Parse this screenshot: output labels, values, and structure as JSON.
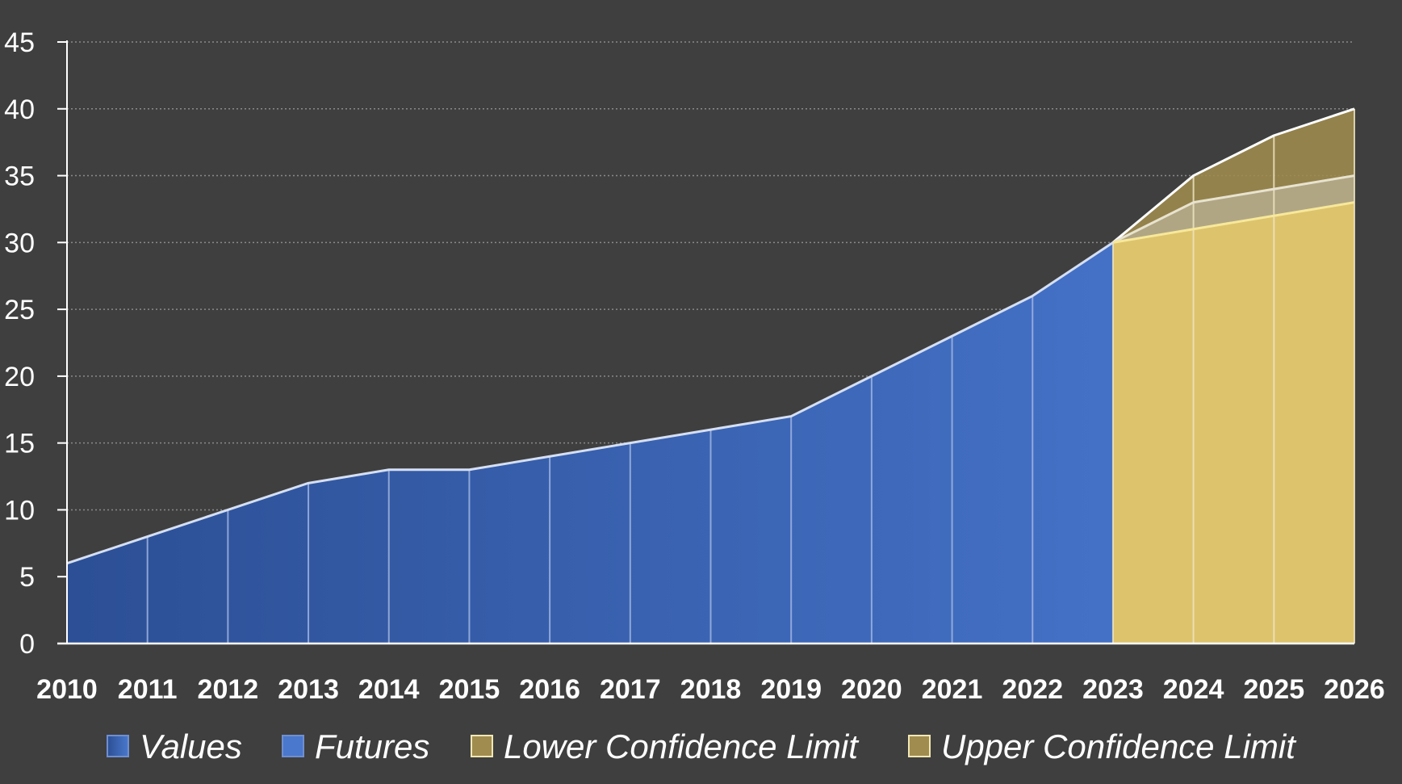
{
  "chart_data": {
    "type": "area",
    "x": [
      "2010",
      "2011",
      "2012",
      "2013",
      "2014",
      "2015",
      "2016",
      "2017",
      "2018",
      "2019",
      "2020",
      "2021",
      "2022",
      "2023",
      "2024",
      "2025",
      "2026"
    ],
    "ylim": [
      0,
      45
    ],
    "yticks": [
      0,
      5,
      10,
      15,
      20,
      25,
      30,
      35,
      40,
      45
    ],
    "grid": "horizontal dotted",
    "legend_position": "bottom",
    "series": [
      {
        "name": "Values",
        "color": "#2f54a0",
        "values": [
          6,
          8,
          10,
          12,
          13,
          13,
          14,
          15,
          16,
          17,
          20,
          23,
          26,
          30,
          null,
          null,
          null
        ]
      },
      {
        "name": "Futures",
        "color": "#4472c4",
        "values": [
          null,
          null,
          null,
          null,
          null,
          null,
          null,
          null,
          null,
          null,
          null,
          null,
          null,
          30,
          33,
          34,
          35
        ]
      },
      {
        "name": "Lower Confidence Limit",
        "color": "#ddc36c",
        "values": [
          null,
          null,
          null,
          null,
          null,
          null,
          null,
          null,
          null,
          null,
          null,
          null,
          null,
          30,
          31,
          32,
          33
        ]
      },
      {
        "name": "Upper Confidence Limit",
        "color": "#a08c4f",
        "values": [
          null,
          null,
          null,
          null,
          null,
          null,
          null,
          null,
          null,
          null,
          null,
          null,
          null,
          30,
          35,
          38,
          40
        ]
      }
    ]
  }
}
